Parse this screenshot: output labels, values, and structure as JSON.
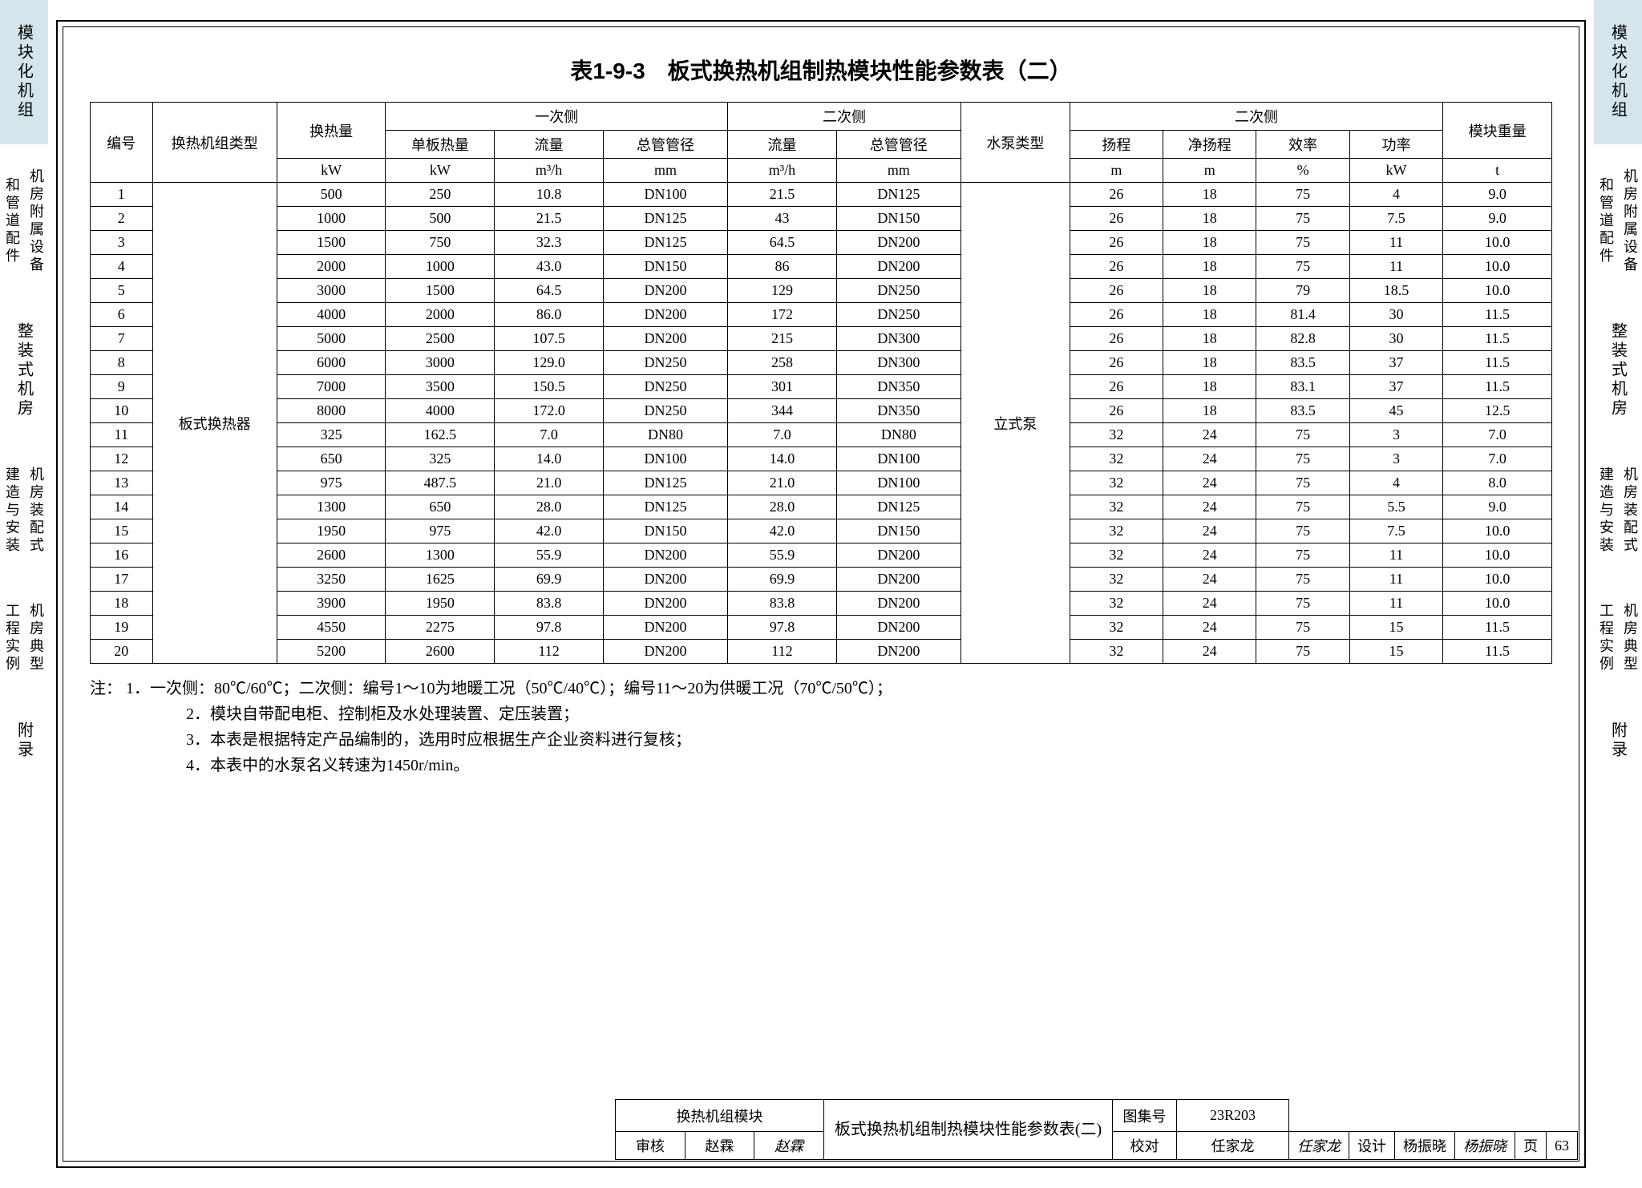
{
  "tabs": {
    "t1": "模块化机组",
    "t2a": "机房附属设备",
    "t2b": "和管道配件",
    "t3": "整装式机房",
    "t4a": "机房装配式",
    "t4b": "建造与安装",
    "t5a": "机房典型",
    "t5b": "工程实例",
    "t6": "附录"
  },
  "title": "表1-9-3　板式换热机组制热模块性能参数表（二）",
  "headers": {
    "c1": "编号",
    "c2": "换热机组类型",
    "c3": "换热量",
    "g1": "一次侧",
    "g2": "二次侧",
    "c_pump": "水泵类型",
    "g3": "二次侧",
    "c_wt": "模块重量",
    "s1": "单板热量",
    "s2": "流量",
    "s3": "总管管径",
    "s4": "流量",
    "s5": "总管管径",
    "s6": "扬程",
    "s7": "净扬程",
    "s8": "效率",
    "s9": "功率",
    "u_kw": "kW",
    "u_m3h": "m³/h",
    "u_mm": "mm",
    "u_m": "m",
    "u_pct": "%",
    "u_t": "t"
  },
  "unit_type": "板式换热器",
  "pump_type": "立式泵",
  "rows": [
    [
      "1",
      "500",
      "250",
      "10.8",
      "DN100",
      "21.5",
      "DN125",
      "26",
      "18",
      "75",
      "4",
      "9.0"
    ],
    [
      "2",
      "1000",
      "500",
      "21.5",
      "DN125",
      "43",
      "DN150",
      "26",
      "18",
      "75",
      "7.5",
      "9.0"
    ],
    [
      "3",
      "1500",
      "750",
      "32.3",
      "DN125",
      "64.5",
      "DN200",
      "26",
      "18",
      "75",
      "11",
      "10.0"
    ],
    [
      "4",
      "2000",
      "1000",
      "43.0",
      "DN150",
      "86",
      "DN200",
      "26",
      "18",
      "75",
      "11",
      "10.0"
    ],
    [
      "5",
      "3000",
      "1500",
      "64.5",
      "DN200",
      "129",
      "DN250",
      "26",
      "18",
      "79",
      "18.5",
      "10.0"
    ],
    [
      "6",
      "4000",
      "2000",
      "86.0",
      "DN200",
      "172",
      "DN250",
      "26",
      "18",
      "81.4",
      "30",
      "11.5"
    ],
    [
      "7",
      "5000",
      "2500",
      "107.5",
      "DN200",
      "215",
      "DN300",
      "26",
      "18",
      "82.8",
      "30",
      "11.5"
    ],
    [
      "8",
      "6000",
      "3000",
      "129.0",
      "DN250",
      "258",
      "DN300",
      "26",
      "18",
      "83.5",
      "37",
      "11.5"
    ],
    [
      "9",
      "7000",
      "3500",
      "150.5",
      "DN250",
      "301",
      "DN350",
      "26",
      "18",
      "83.1",
      "37",
      "11.5"
    ],
    [
      "10",
      "8000",
      "4000",
      "172.0",
      "DN250",
      "344",
      "DN350",
      "26",
      "18",
      "83.5",
      "45",
      "12.5"
    ],
    [
      "11",
      "325",
      "162.5",
      "7.0",
      "DN80",
      "7.0",
      "DN80",
      "32",
      "24",
      "75",
      "3",
      "7.0"
    ],
    [
      "12",
      "650",
      "325",
      "14.0",
      "DN100",
      "14.0",
      "DN100",
      "32",
      "24",
      "75",
      "3",
      "7.0"
    ],
    [
      "13",
      "975",
      "487.5",
      "21.0",
      "DN125",
      "21.0",
      "DN100",
      "32",
      "24",
      "75",
      "4",
      "8.0"
    ],
    [
      "14",
      "1300",
      "650",
      "28.0",
      "DN125",
      "28.0",
      "DN125",
      "32",
      "24",
      "75",
      "5.5",
      "9.0"
    ],
    [
      "15",
      "1950",
      "975",
      "42.0",
      "DN150",
      "42.0",
      "DN150",
      "32",
      "24",
      "75",
      "7.5",
      "10.0"
    ],
    [
      "16",
      "2600",
      "1300",
      "55.9",
      "DN200",
      "55.9",
      "DN200",
      "32",
      "24",
      "75",
      "11",
      "10.0"
    ],
    [
      "17",
      "3250",
      "1625",
      "69.9",
      "DN200",
      "69.9",
      "DN200",
      "32",
      "24",
      "75",
      "11",
      "10.0"
    ],
    [
      "18",
      "3900",
      "1950",
      "83.8",
      "DN200",
      "83.8",
      "DN200",
      "32",
      "24",
      "75",
      "11",
      "10.0"
    ],
    [
      "19",
      "4550",
      "2275",
      "97.8",
      "DN200",
      "97.8",
      "DN200",
      "32",
      "24",
      "75",
      "15",
      "11.5"
    ],
    [
      "20",
      "5200",
      "2600",
      "112",
      "DN200",
      "112",
      "DN200",
      "32",
      "24",
      "75",
      "15",
      "11.5"
    ]
  ],
  "notes_label": "注：",
  "notes": [
    "1．一次侧：80℃/60℃；二次侧：编号1～10为地暖工况（50℃/40℃）；编号11～20为供暖工况（70℃/50℃）；",
    "2．模块自带配电柜、控制柜及水处理装置、定压装置；",
    "3．本表是根据特定产品编制的，选用时应根据生产企业资料进行复核；",
    "4．本表中的水泵名义转速为1450r/min。"
  ],
  "titleblock": {
    "module": "换热机组模块",
    "name": "板式换热机组制热模块性能参数表(二)",
    "atlas_label": "图集号",
    "atlas_no": "23R203",
    "review_label": "审核",
    "reviewer": "赵霖",
    "reviewer_sig": "赵霖",
    "check_label": "校对",
    "checker": "任家龙",
    "checker_sig": "任家龙",
    "design_label": "设计",
    "designer": "杨振晓",
    "designer_sig": "杨振晓",
    "page_label": "页",
    "page_no": "63"
  }
}
